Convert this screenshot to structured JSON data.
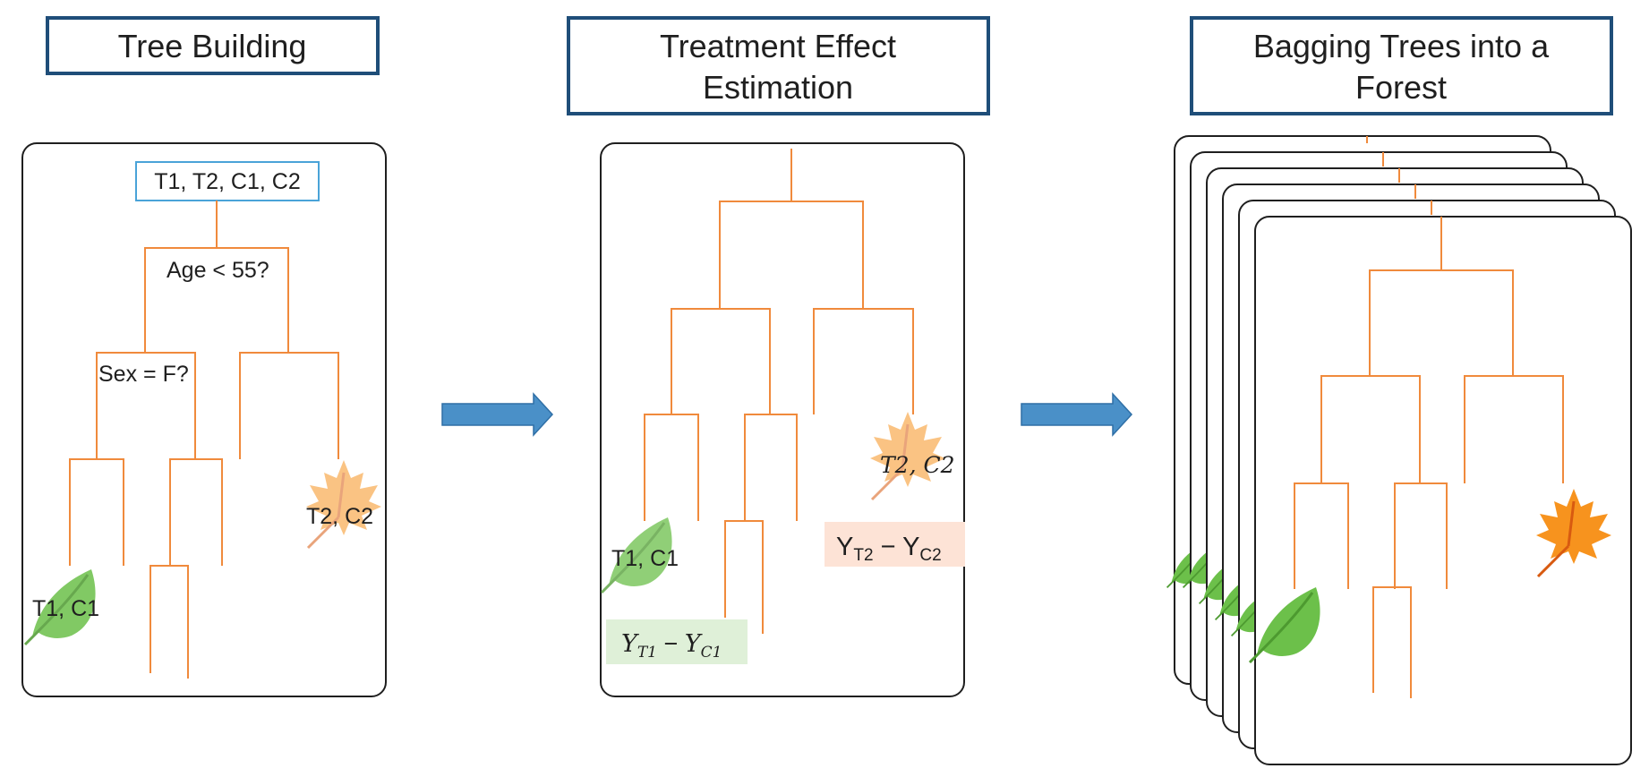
{
  "headers": {
    "tree_building": "Tree Building",
    "treatment_line1": "Treatment Effect",
    "treatment_line2": "Estimation",
    "bagging_line1": "Bagging Trees into a",
    "bagging_line2": "Forest"
  },
  "panel1": {
    "root_label": "T1, T2, C1, C2",
    "split1": "Age < 55?",
    "split2": "Sex = F?",
    "leaf_green": "T1, C1",
    "leaf_orange": "T2, C2"
  },
  "panel2": {
    "leaf_green": "T1, C1",
    "leaf_orange": "T2, C2",
    "effect_green": {
      "y": "Y",
      "t": "T1",
      "minus": " − ",
      "c": "C1"
    },
    "effect_orange": {
      "y": "Y",
      "t": "T2",
      "minus": " − ",
      "c": "C2"
    }
  },
  "colors": {
    "header_border": "#1f4e79",
    "tree_line": "#f08a3c",
    "arrow": "#4a90c8",
    "root_box": "#4aa3d8",
    "leaf_green": "#6cc04a",
    "leaf_orange": "#f7931e",
    "effect_green_bg": "#dff0d8",
    "effect_orange_bg": "#fde3d6"
  },
  "icons": {
    "arrow": "right-arrow-icon",
    "green_leaf": "green-leaf-icon",
    "orange_leaf": "maple-leaf-icon"
  }
}
